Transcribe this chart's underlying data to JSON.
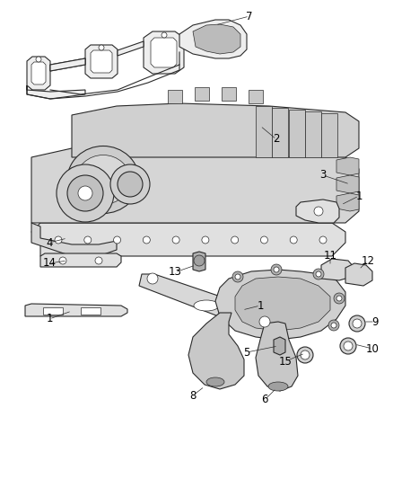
{
  "background_color": "#ffffff",
  "line_color": "#2a2a2a",
  "label_color": "#000000",
  "fig_width": 4.38,
  "fig_height": 5.33,
  "dpi": 100,
  "lw_main": 0.8,
  "lw_thin": 0.5,
  "gray_fill": "#d8d8d8",
  "light_fill": "#eeeeee",
  "mid_fill": "#c8c8c8"
}
